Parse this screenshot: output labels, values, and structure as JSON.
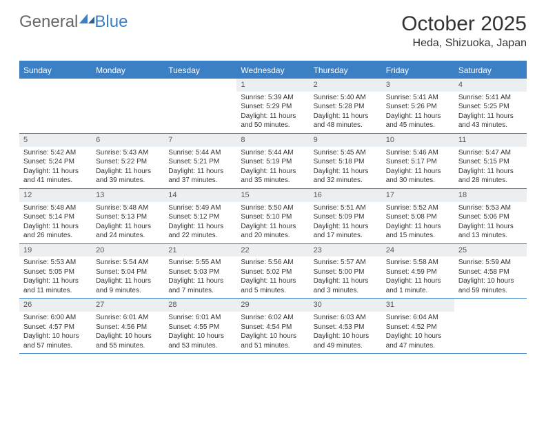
{
  "brand": {
    "part1": "General",
    "part2": "Blue"
  },
  "title": "October 2025",
  "location": "Heda, Shizuoka, Japan",
  "colors": {
    "header_bar": "#3b7fc4",
    "daynum_bg": "#eceff1",
    "text": "#333333",
    "logo_gray": "#666666",
    "logo_blue": "#3b7fc4",
    "background": "#ffffff"
  },
  "weekdays": [
    "Sunday",
    "Monday",
    "Tuesday",
    "Wednesday",
    "Thursday",
    "Friday",
    "Saturday"
  ],
  "weeks": [
    [
      null,
      null,
      null,
      {
        "n": "1",
        "sr": "Sunrise: 5:39 AM",
        "ss": "Sunset: 5:29 PM",
        "d1": "Daylight: 11 hours",
        "d2": "and 50 minutes."
      },
      {
        "n": "2",
        "sr": "Sunrise: 5:40 AM",
        "ss": "Sunset: 5:28 PM",
        "d1": "Daylight: 11 hours",
        "d2": "and 48 minutes."
      },
      {
        "n": "3",
        "sr": "Sunrise: 5:41 AM",
        "ss": "Sunset: 5:26 PM",
        "d1": "Daylight: 11 hours",
        "d2": "and 45 minutes."
      },
      {
        "n": "4",
        "sr": "Sunrise: 5:41 AM",
        "ss": "Sunset: 5:25 PM",
        "d1": "Daylight: 11 hours",
        "d2": "and 43 minutes."
      }
    ],
    [
      {
        "n": "5",
        "sr": "Sunrise: 5:42 AM",
        "ss": "Sunset: 5:24 PM",
        "d1": "Daylight: 11 hours",
        "d2": "and 41 minutes."
      },
      {
        "n": "6",
        "sr": "Sunrise: 5:43 AM",
        "ss": "Sunset: 5:22 PM",
        "d1": "Daylight: 11 hours",
        "d2": "and 39 minutes."
      },
      {
        "n": "7",
        "sr": "Sunrise: 5:44 AM",
        "ss": "Sunset: 5:21 PM",
        "d1": "Daylight: 11 hours",
        "d2": "and 37 minutes."
      },
      {
        "n": "8",
        "sr": "Sunrise: 5:44 AM",
        "ss": "Sunset: 5:19 PM",
        "d1": "Daylight: 11 hours",
        "d2": "and 35 minutes."
      },
      {
        "n": "9",
        "sr": "Sunrise: 5:45 AM",
        "ss": "Sunset: 5:18 PM",
        "d1": "Daylight: 11 hours",
        "d2": "and 32 minutes."
      },
      {
        "n": "10",
        "sr": "Sunrise: 5:46 AM",
        "ss": "Sunset: 5:17 PM",
        "d1": "Daylight: 11 hours",
        "d2": "and 30 minutes."
      },
      {
        "n": "11",
        "sr": "Sunrise: 5:47 AM",
        "ss": "Sunset: 5:15 PM",
        "d1": "Daylight: 11 hours",
        "d2": "and 28 minutes."
      }
    ],
    [
      {
        "n": "12",
        "sr": "Sunrise: 5:48 AM",
        "ss": "Sunset: 5:14 PM",
        "d1": "Daylight: 11 hours",
        "d2": "and 26 minutes."
      },
      {
        "n": "13",
        "sr": "Sunrise: 5:48 AM",
        "ss": "Sunset: 5:13 PM",
        "d1": "Daylight: 11 hours",
        "d2": "and 24 minutes."
      },
      {
        "n": "14",
        "sr": "Sunrise: 5:49 AM",
        "ss": "Sunset: 5:12 PM",
        "d1": "Daylight: 11 hours",
        "d2": "and 22 minutes."
      },
      {
        "n": "15",
        "sr": "Sunrise: 5:50 AM",
        "ss": "Sunset: 5:10 PM",
        "d1": "Daylight: 11 hours",
        "d2": "and 20 minutes."
      },
      {
        "n": "16",
        "sr": "Sunrise: 5:51 AM",
        "ss": "Sunset: 5:09 PM",
        "d1": "Daylight: 11 hours",
        "d2": "and 17 minutes."
      },
      {
        "n": "17",
        "sr": "Sunrise: 5:52 AM",
        "ss": "Sunset: 5:08 PM",
        "d1": "Daylight: 11 hours",
        "d2": "and 15 minutes."
      },
      {
        "n": "18",
        "sr": "Sunrise: 5:53 AM",
        "ss": "Sunset: 5:06 PM",
        "d1": "Daylight: 11 hours",
        "d2": "and 13 minutes."
      }
    ],
    [
      {
        "n": "19",
        "sr": "Sunrise: 5:53 AM",
        "ss": "Sunset: 5:05 PM",
        "d1": "Daylight: 11 hours",
        "d2": "and 11 minutes."
      },
      {
        "n": "20",
        "sr": "Sunrise: 5:54 AM",
        "ss": "Sunset: 5:04 PM",
        "d1": "Daylight: 11 hours",
        "d2": "and 9 minutes."
      },
      {
        "n": "21",
        "sr": "Sunrise: 5:55 AM",
        "ss": "Sunset: 5:03 PM",
        "d1": "Daylight: 11 hours",
        "d2": "and 7 minutes."
      },
      {
        "n": "22",
        "sr": "Sunrise: 5:56 AM",
        "ss": "Sunset: 5:02 PM",
        "d1": "Daylight: 11 hours",
        "d2": "and 5 minutes."
      },
      {
        "n": "23",
        "sr": "Sunrise: 5:57 AM",
        "ss": "Sunset: 5:00 PM",
        "d1": "Daylight: 11 hours",
        "d2": "and 3 minutes."
      },
      {
        "n": "24",
        "sr": "Sunrise: 5:58 AM",
        "ss": "Sunset: 4:59 PM",
        "d1": "Daylight: 11 hours",
        "d2": "and 1 minute."
      },
      {
        "n": "25",
        "sr": "Sunrise: 5:59 AM",
        "ss": "Sunset: 4:58 PM",
        "d1": "Daylight: 10 hours",
        "d2": "and 59 minutes."
      }
    ],
    [
      {
        "n": "26",
        "sr": "Sunrise: 6:00 AM",
        "ss": "Sunset: 4:57 PM",
        "d1": "Daylight: 10 hours",
        "d2": "and 57 minutes."
      },
      {
        "n": "27",
        "sr": "Sunrise: 6:01 AM",
        "ss": "Sunset: 4:56 PM",
        "d1": "Daylight: 10 hours",
        "d2": "and 55 minutes."
      },
      {
        "n": "28",
        "sr": "Sunrise: 6:01 AM",
        "ss": "Sunset: 4:55 PM",
        "d1": "Daylight: 10 hours",
        "d2": "and 53 minutes."
      },
      {
        "n": "29",
        "sr": "Sunrise: 6:02 AM",
        "ss": "Sunset: 4:54 PM",
        "d1": "Daylight: 10 hours",
        "d2": "and 51 minutes."
      },
      {
        "n": "30",
        "sr": "Sunrise: 6:03 AM",
        "ss": "Sunset: 4:53 PM",
        "d1": "Daylight: 10 hours",
        "d2": "and 49 minutes."
      },
      {
        "n": "31",
        "sr": "Sunrise: 6:04 AM",
        "ss": "Sunset: 4:52 PM",
        "d1": "Daylight: 10 hours",
        "d2": "and 47 minutes."
      },
      null
    ]
  ]
}
